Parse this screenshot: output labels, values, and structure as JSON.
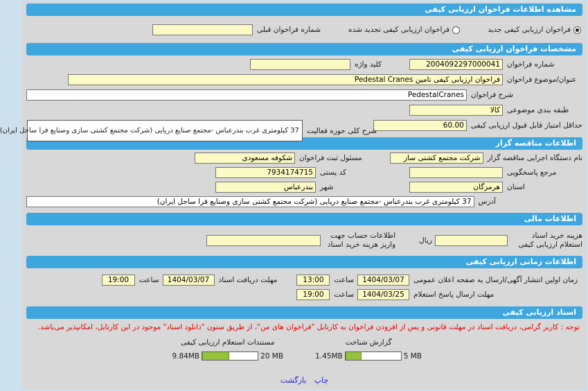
{
  "colors": {
    "accent": "#3fa7df",
    "field_yellow": "#fbfac4",
    "notice_red": "#e10000",
    "progress_green": "#96c33c"
  },
  "header": {
    "title": "مشاهده اطلاعات فراخوان ارزیابی کیفی"
  },
  "call_type": {
    "new_label": "فراخوان ارزیابی کیفی جدید",
    "renewed_label": "فراخوان ارزیابی کیفی تجدید شده",
    "prev_number_label": "شماره فراخوان قبلی",
    "prev_number_value": ""
  },
  "specs": {
    "title": "مشخصات فراخوان ارزیابی کیفی",
    "call_number_label": "شماره فراخوان",
    "call_number": "2004092297000041",
    "keyword_label": "کلید واژه",
    "keyword": "",
    "subject_label": "عنوان/موضوع فراخوان",
    "subject": "فراخوان ارزیابی کیفی تامین Pedestal Cranes",
    "description_label": "شرح فراخوان",
    "description": "PedestalCranes",
    "category_label": "طبقه بندی موضوعی",
    "category": "کالا",
    "activity_label": "شرح کلی حوزه فعالیت",
    "activity": "37 کیلومتری غرب بندرعباس -مجتمع صنایع دریایی (شرکت مجتمع کشتی سازی وصنایع فرا ساحل ایران)",
    "min_score_label": "حداقل امتیاز قابل قبول ارزیابی کیفی",
    "min_score": "60.00"
  },
  "tenderer": {
    "title": "اطلاعات مناقصه گزار",
    "agency_label": "نام دستگاه اجرایی مناقصه گزار",
    "agency": "شرکت مجتمع کشتی ساز",
    "registrar_label": "مسئول ثبت فراخوان",
    "registrar": "شکوفه مسعودی",
    "contact_label": "مرجع پاسخگویی",
    "contact": "",
    "postal_label": "کد پستی",
    "postal": "7934174715",
    "province_label": "استان",
    "province": "هرمزگان",
    "city_label": "شهر",
    "city": "بندرعباس",
    "address_label": "آدرس",
    "address": "37 کیلومتری غرب بندرعباس -مجتمع صنایع دریایی (شرکت مجتمع کشتی سازی وصنایع فرا ساحل ایران)"
  },
  "financial": {
    "title": "اطلاعات مالی",
    "doc_cost_label": "هزینه خرید اسناد استعلام ارزیابی کیفی",
    "doc_cost": "",
    "currency_label": "ریال",
    "account_label": "اطلاعات حساب جهت واریز هزینه خرید اسناد",
    "account": ""
  },
  "timing": {
    "title": "اطلاعات زمانی ارزیابی کیفی",
    "hour_label": "ساعت",
    "publish_label": "زمان اولین انتشار آگهی/ارسال به صفحه اعلان عمومی",
    "publish_date": "1404/03/07",
    "publish_time": "13:00",
    "doc_deadline_label": "مهلت دریافت اسناد",
    "doc_deadline_date": "1404/03/07",
    "doc_deadline_time": "19:00",
    "reply_label": "مهلت ارسال پاسخ استعلام",
    "reply_date": "1404/03/25",
    "reply_time": "19:00"
  },
  "documents": {
    "title": "اسناد ارزیابی کیفی",
    "notice": "توجه : کاربر گرامی، دریافت اسناد در مهلت قانونی و پس از افزودن فراخوان به کارتابل \"فراخوان های من\"، از طریق ستون \"دانلود اسناد\" موجود در این کارتابل، امکانپذیر می‌باشد.",
    "recognition_label": "گزارش شناخت",
    "recognition_current": "1.45MB",
    "recognition_max": "5 MB",
    "recognition_pct": 29,
    "docs_label": "مستندات استعلام ارزیابی کیفی",
    "docs_current": "9.84MB",
    "docs_max": "20 MB",
    "docs_pct": 49
  },
  "footer": {
    "print_label": "چاپ",
    "back_label": "بازگشت"
  }
}
